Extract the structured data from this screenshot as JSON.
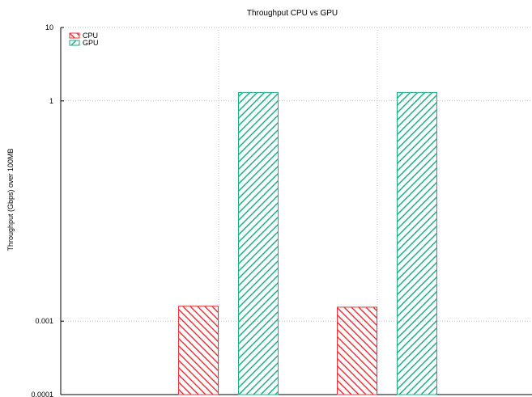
{
  "chart_data": {
    "type": "bar",
    "title": "Throughput CPU vs GPU",
    "xlabel": "",
    "ylabel": "Throughput (Gbps) over 100MB",
    "yscale": "log",
    "ylim": [
      0.0001,
      10
    ],
    "y_ticks": [
      "10",
      "1",
      "0.001",
      "0.0001"
    ],
    "y_tick_values": [
      10,
      1,
      0.001,
      0.0001
    ],
    "categories": [
      "",
      ""
    ],
    "series": [
      {
        "name": "CPU",
        "values": [
          0.0016,
          0.00155
        ],
        "color": "#e8343a",
        "pattern": "hatch-backslash"
      },
      {
        "name": "GPU",
        "values": [
          1.3,
          1.3
        ],
        "color": "#1fae86",
        "pattern": "hatch-slash"
      }
    ],
    "grid": true,
    "legend_position": "top-left"
  }
}
